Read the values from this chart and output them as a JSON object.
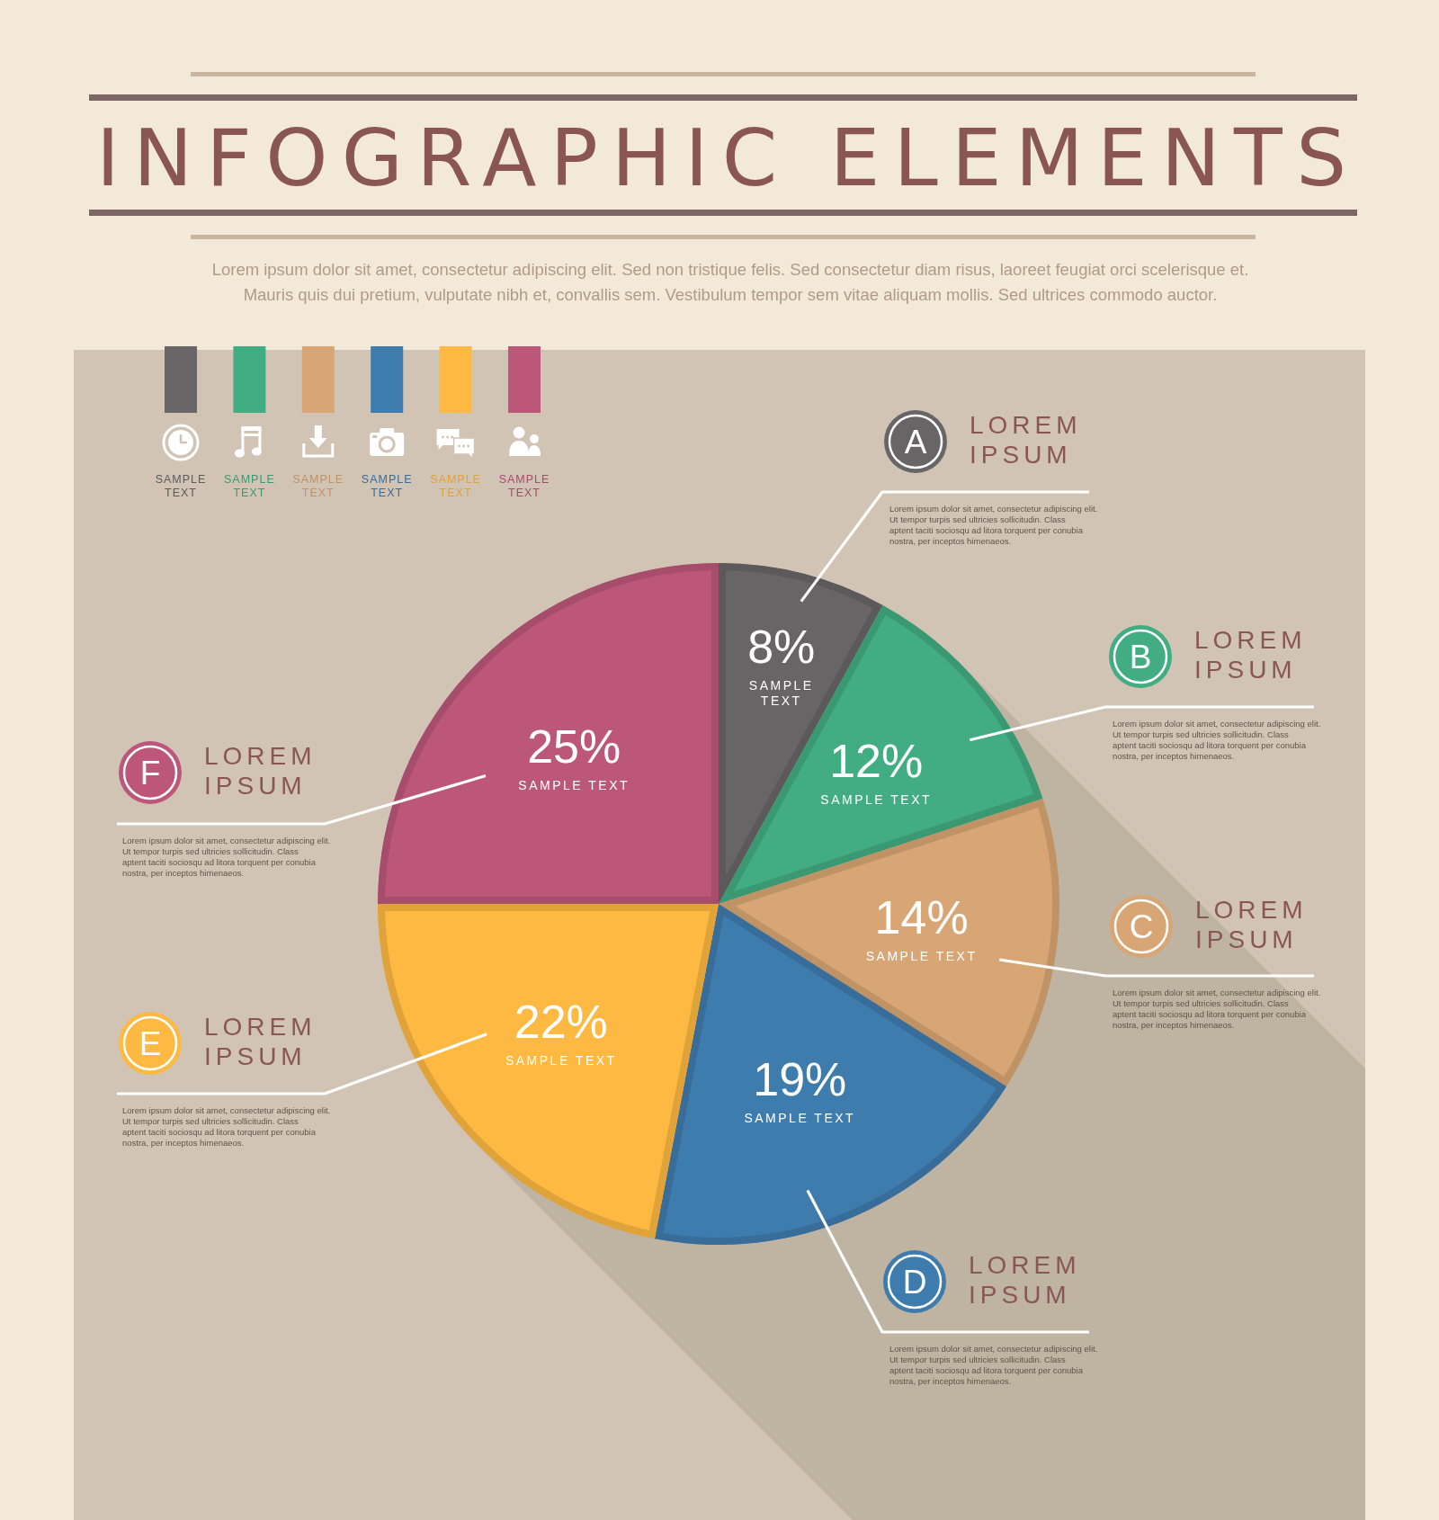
{
  "chart_data": {
    "type": "pie",
    "title": "INFOGRAPHIC ELEMENTS",
    "subtitle": "Lorem ipsum dolor sit amet, consectetur adipiscing elit. Sed non tristique felis. Sed consectetur diam risus, laoreet feugiat orci scelerisque et. Mauris quis dui pretium, vulputate nibh et, convallis sem. Vestibulum tempor sem vitae aliquam mollis. Sed ultrices commodo auctor.",
    "categories": [
      "SAMPLE TEXT",
      "SAMPLE TEXT",
      "SAMPLE TEXT",
      "SAMPLE TEXT",
      "SAMPLE TEXT",
      "SAMPLE TEXT"
    ],
    "values": [
      8,
      12,
      14,
      19,
      22,
      25
    ],
    "colors": [
      "#676566",
      "#42ad82",
      "#d8a674",
      "#3f7cae",
      "#fdb942",
      "#bc577a"
    ],
    "value_labels": [
      "8%",
      "12%",
      "14%",
      "19%",
      "22%",
      "25%"
    ],
    "annotations": [
      "A",
      "LOREM IPSUM",
      "Lorem ipsum dolor sit amet, consectetur adipiscing elit. Ut tempor turpis sed ultricies sollicitudin. Class aptent taciti sociosqu ad litora torquent per conubia nostra, per inceptos himenaeos.",
      "B",
      "LOREM IPSUM",
      "Lorem ipsum dolor sit amet, consectetur adipiscing elit. Ut tempor turpis sed ultricies sollicitudin. Class aptent taciti sociosqu ad litora torquent per conubia nostra, per inceptos himenaeos.",
      "C",
      "LOREM IPSUM",
      "Lorem ipsum dolor sit amet, consectetur adipiscing elit. Ut tempor turpis sed ultricies sollicitudin. Class aptent taciti sociosqu ad litora torquent per conubia nostra, per inceptos himenaeos.",
      "D",
      "LOREM IPSUM",
      "Lorem ipsum dolor sit amet, consectetur adipiscing elit. Ut tempor turpis sed ultricies sollicitudin. Class aptent taciti sociosqu ad litora torquent per conubia nostra, per inceptos himenaeos.",
      "E",
      "LOREM IPSUM",
      "Lorem ipsum dolor sit amet, consectetur adipiscing elit. Ut tempor turpis sed ultricies sollicitudin. Class aptent taciti sociosqu ad litora torquent per conubia nostra, per inceptos himenaeos.",
      "F",
      "LOREM IPSUM",
      "Lorem ipsum dolor sit amet, consectetur adipiscing elit. Ut tempor turpis sed ultricies sollicitudin. Class aptent taciti sociosqu ad litora torquent per conubia nostra, per inceptos himenaeos."
    ]
  }
}
